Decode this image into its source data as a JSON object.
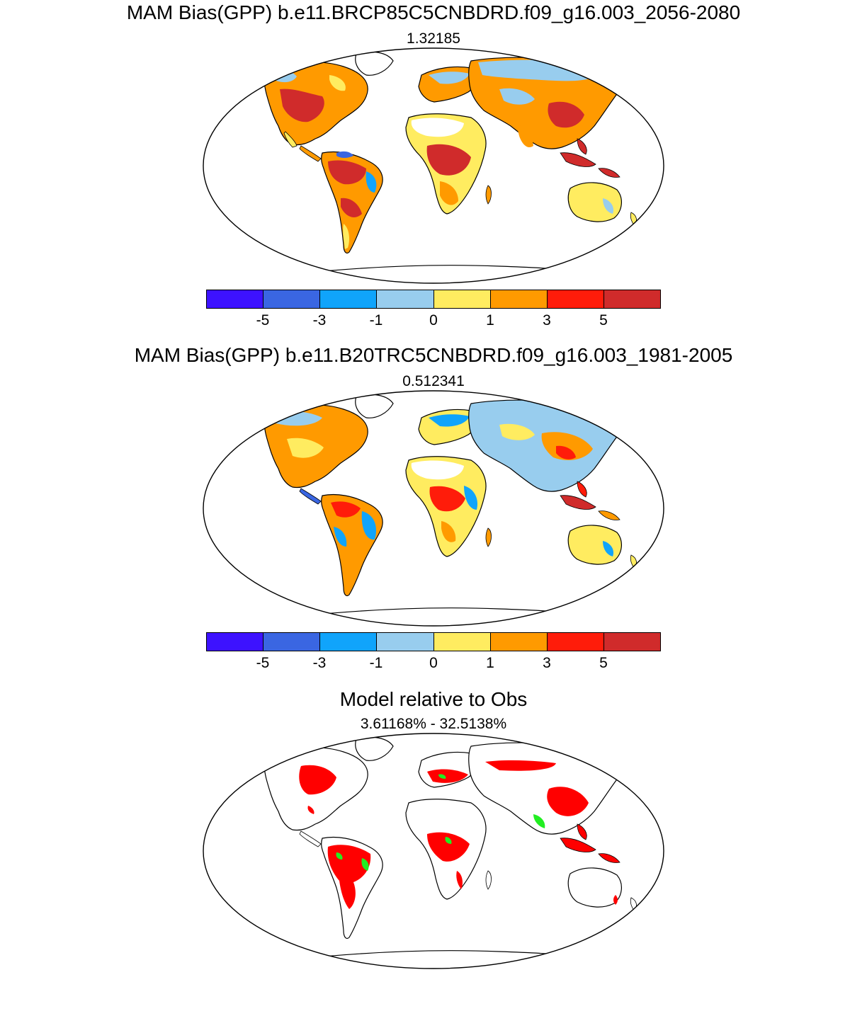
{
  "panels": [
    {
      "title": "MAM Bias(GPP) b.e11.BRCP85C5CNBDRD.f09_g16.003_2056-2080",
      "subtitle": "1.32185"
    },
    {
      "title": "MAM Bias(GPP) b.e11.B20TRC5CNBDRD.f09_g16.003_1981-2005",
      "subtitle": "0.512341"
    },
    {
      "title": "Model relative to Obs",
      "subtitle": "3.61168% - 32.5138%"
    }
  ],
  "colorbar": {
    "colors": [
      "#3d12ff",
      "#3a66e2",
      "#10a4fb",
      "#98cdee",
      "#ffec60",
      "#ff9a00",
      "#ff1c0a",
      "#d02b2b"
    ],
    "labels": [
      "-5",
      "-3",
      "-1",
      "0",
      "1",
      "3",
      "5"
    ]
  },
  "relative_colors": {
    "red": "#ff0000",
    "green": "#22ee22"
  }
}
